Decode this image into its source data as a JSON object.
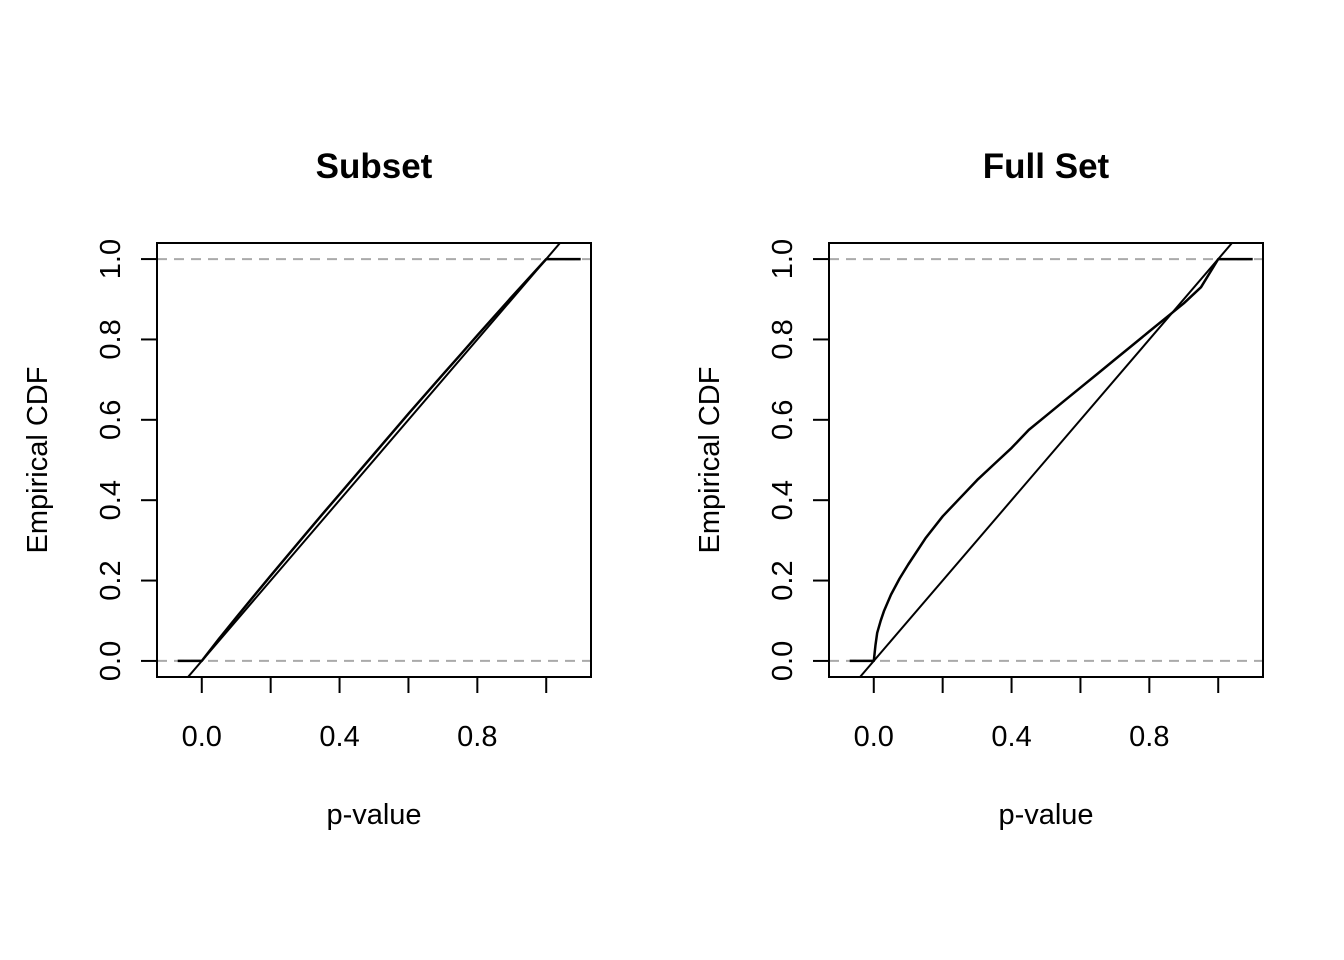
{
  "chart_data": [
    {
      "type": "line",
      "title": "Subset",
      "xlabel": "p-value",
      "ylabel": "Empirical CDF",
      "xlim": [
        -0.13,
        1.13
      ],
      "ylim": [
        -0.04,
        1.04
      ],
      "x_ticks": [
        0.0,
        0.2,
        0.4,
        0.6,
        0.8,
        1.0
      ],
      "x_tick_labels": [
        "0.0",
        "0.4",
        "0.8"
      ],
      "x_tick_label_values": [
        0.0,
        0.4,
        0.8
      ],
      "y_ticks": [
        0.0,
        0.2,
        0.4,
        0.6,
        0.8,
        1.0
      ],
      "y_tick_labels": [
        "0.0",
        "0.2",
        "0.4",
        "0.6",
        "0.8",
        "1.0"
      ],
      "hlines": [
        0.0,
        1.0
      ],
      "hline_color": "#aaaaaa",
      "grid": false,
      "reference_line": {
        "x": [
          -0.04,
          1.04
        ],
        "y": [
          -0.04,
          1.04
        ]
      },
      "series": [
        {
          "x": [
            -0.07,
            0.0,
            0.05,
            0.1,
            0.15,
            0.2,
            0.25,
            0.3,
            0.35,
            0.4,
            0.45,
            0.5,
            0.55,
            0.6,
            0.65,
            0.7,
            0.75,
            0.8,
            0.85,
            0.9,
            0.95,
            1.0,
            1.1
          ],
          "y": [
            0.0,
            0.0,
            0.055,
            0.108,
            0.16,
            0.212,
            0.263,
            0.314,
            0.365,
            0.415,
            0.465,
            0.515,
            0.565,
            0.615,
            0.664,
            0.713,
            0.761,
            0.81,
            0.858,
            0.906,
            0.953,
            1.0,
            1.0
          ],
          "color": "#000000"
        }
      ]
    },
    {
      "type": "line",
      "title": "Full Set",
      "xlabel": "p-value",
      "ylabel": "Empirical CDF",
      "xlim": [
        -0.13,
        1.13
      ],
      "ylim": [
        -0.04,
        1.04
      ],
      "x_ticks": [
        0.0,
        0.2,
        0.4,
        0.6,
        0.8,
        1.0
      ],
      "x_tick_labels": [
        "0.0",
        "0.4",
        "0.8"
      ],
      "x_tick_label_values": [
        0.0,
        0.4,
        0.8
      ],
      "y_ticks": [
        0.0,
        0.2,
        0.4,
        0.6,
        0.8,
        1.0
      ],
      "y_tick_labels": [
        "0.0",
        "0.2",
        "0.4",
        "0.6",
        "0.8",
        "1.0"
      ],
      "hlines": [
        0.0,
        1.0
      ],
      "hline_color": "#aaaaaa",
      "grid": false,
      "reference_line": {
        "x": [
          -0.04,
          1.04
        ],
        "y": [
          -0.04,
          1.04
        ]
      },
      "series": [
        {
          "x": [
            -0.07,
            0.0,
            0.005,
            0.01,
            0.02,
            0.03,
            0.05,
            0.075,
            0.1,
            0.15,
            0.2,
            0.25,
            0.3,
            0.35,
            0.4,
            0.45,
            0.5,
            0.55,
            0.6,
            0.65,
            0.7,
            0.75,
            0.8,
            0.85,
            0.9,
            0.95,
            1.0,
            1.1
          ],
          "y": [
            0.0,
            0.0,
            0.04,
            0.07,
            0.1,
            0.125,
            0.165,
            0.205,
            0.24,
            0.305,
            0.36,
            0.405,
            0.45,
            0.49,
            0.53,
            0.575,
            0.61,
            0.645,
            0.68,
            0.715,
            0.75,
            0.785,
            0.82,
            0.855,
            0.89,
            0.93,
            1.0,
            1.0
          ],
          "color": "#000000"
        }
      ]
    }
  ]
}
